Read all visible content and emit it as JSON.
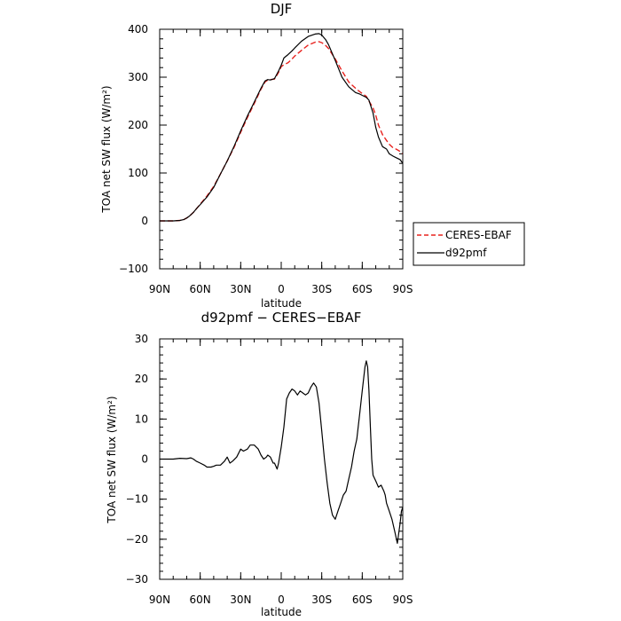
{
  "chart_data": [
    {
      "type": "line",
      "title": "DJF",
      "xlabel": "latitude",
      "ylabel": "TOA net SW flux (W/m²)",
      "xlim": [
        90,
        -90
      ],
      "ylim": [
        -100,
        400
      ],
      "xticks": [
        90,
        60,
        30,
        0,
        -30,
        -60,
        -90
      ],
      "xtick_labels": [
        "90N",
        "60N",
        "30N",
        "0",
        "30S",
        "60S",
        "90S"
      ],
      "yticks": [
        -100,
        0,
        100,
        200,
        300,
        400
      ],
      "ytick_labels": [
        "−100",
        "0",
        "100",
        "200",
        "300",
        "400"
      ],
      "legend_position": "right",
      "series": [
        {
          "name": "CERES-EBAF",
          "color": "#e8231f",
          "dash": "dashed",
          "x": [
            90,
            85,
            80,
            75,
            72,
            70,
            68,
            65,
            62,
            60,
            55,
            50,
            45,
            40,
            35,
            30,
            25,
            20,
            15,
            12,
            10,
            8,
            5,
            2,
            0,
            -2,
            -5,
            -8,
            -10,
            -15,
            -20,
            -25,
            -28,
            -30,
            -33,
            -35,
            -40,
            -45,
            -50,
            -55,
            -58,
            -60,
            -63,
            -65,
            -68,
            -70,
            -72,
            -75,
            -78,
            -80,
            -83,
            -85,
            -88,
            -90
          ],
          "y": [
            0,
            0,
            0,
            1,
            3,
            6,
            10,
            18,
            28,
            35,
            52,
            72,
            98,
            125,
            153,
            185,
            216,
            245,
            275,
            290,
            294,
            295,
            296,
            310,
            322,
            326,
            330,
            338,
            344,
            356,
            367,
            373,
            374,
            372,
            366,
            360,
            338,
            313,
            290,
            277,
            270,
            266,
            260,
            250,
            236,
            220,
            200,
            180,
            168,
            160,
            152,
            150,
            145,
            140
          ]
        },
        {
          "name": "d92pmf",
          "color": "#000000",
          "dash": "solid",
          "x": [
            90,
            85,
            80,
            75,
            72,
            70,
            68,
            65,
            62,
            60,
            55,
            50,
            45,
            40,
            35,
            30,
            25,
            20,
            15,
            12,
            10,
            8,
            5,
            2,
            0,
            -2,
            -5,
            -8,
            -10,
            -15,
            -20,
            -25,
            -28,
            -30,
            -33,
            -35,
            -40,
            -45,
            -50,
            -55,
            -58,
            -60,
            -63,
            -65,
            -68,
            -70,
            -72,
            -75,
            -78,
            -80,
            -83,
            -85,
            -88,
            -90
          ],
          "y": [
            0,
            0,
            0,
            1,
            3,
            6,
            10,
            18,
            28,
            34,
            50,
            70,
            98,
            125,
            155,
            188,
            219,
            248,
            277,
            292,
            295,
            294,
            297,
            313,
            325,
            340,
            347,
            355,
            361,
            375,
            385,
            390,
            391,
            388,
            378,
            368,
            335,
            300,
            280,
            268,
            265,
            262,
            258,
            252,
            225,
            195,
            175,
            155,
            150,
            140,
            135,
            132,
            128,
            120
          ]
        }
      ]
    },
    {
      "type": "line",
      "title": "d92pmf − CERES−EBAF",
      "xlabel": "latitude",
      "ylabel": "TOA net SW flux (W/m²)",
      "xlim": [
        90,
        -90
      ],
      "ylim": [
        -30,
        30
      ],
      "xticks": [
        90,
        60,
        30,
        0,
        -30,
        -60,
        -90
      ],
      "xtick_labels": [
        "90N",
        "60N",
        "30N",
        "0",
        "30S",
        "60S",
        "90S"
      ],
      "yticks": [
        -30,
        -20,
        -10,
        0,
        10,
        20,
        30
      ],
      "ytick_labels": [
        "−30",
        "−20",
        "−10",
        "0",
        "10",
        "20",
        "30"
      ],
      "series": [
        {
          "color": "#000000",
          "dash": "solid",
          "x": [
            90,
            80,
            75,
            70,
            67,
            65,
            63,
            60,
            57,
            55,
            52,
            50,
            48,
            45,
            42,
            40,
            38,
            36,
            33,
            30,
            28,
            25,
            23,
            20,
            17,
            15,
            13,
            11,
            10,
            8,
            6,
            5,
            3,
            2,
            0,
            -2,
            -4,
            -6,
            -8,
            -10,
            -12,
            -14,
            -16,
            -18,
            -20,
            -22,
            -24,
            -26,
            -28,
            -30,
            -32,
            -34,
            -36,
            -38,
            -40,
            -42,
            -44,
            -46,
            -48,
            -50,
            -52,
            -54,
            -56,
            -58,
            -60,
            -62,
            -63,
            -64,
            -65,
            -66,
            -67,
            -68,
            -70,
            -72,
            -74,
            -76,
            -77,
            -78,
            -80,
            -82,
            -84,
            -86,
            -88,
            -89,
            -90
          ],
          "y": [
            0,
            0,
            0.2,
            0.1,
            0.3,
            0,
            -0.5,
            -1,
            -1.5,
            -2,
            -2,
            -1.8,
            -1.5,
            -1.5,
            -0.5,
            0.5,
            -1,
            -0.5,
            0.5,
            2.5,
            2,
            2.5,
            3.5,
            3.5,
            2.5,
            1,
            0,
            0.5,
            1,
            0.5,
            -1,
            -1,
            -2.5,
            -1,
            3,
            8,
            15,
            16.5,
            17.5,
            17,
            16,
            17,
            16.5,
            16,
            16.5,
            18,
            19,
            18,
            14,
            7,
            0,
            -6,
            -11,
            -14,
            -15,
            -13,
            -11,
            -9,
            -8,
            -5,
            -2,
            2,
            5,
            11,
            17,
            23,
            24.5,
            23,
            17,
            8,
            0,
            -4,
            -5.5,
            -7,
            -6.5,
            -8,
            -9,
            -11,
            -13,
            -15,
            -18,
            -21,
            -16,
            -13,
            -12
          ]
        }
      ]
    }
  ]
}
